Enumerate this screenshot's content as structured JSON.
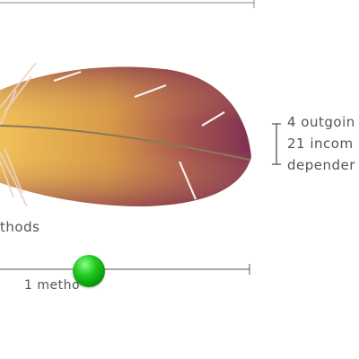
{
  "metrics": {
    "methods_label": "thods",
    "dependencies": {
      "line1": "4 outgoin",
      "line2": "21 incom",
      "line3": "depender"
    }
  },
  "slider": {
    "value_label": "1 metho",
    "thumb_color": "#22cc22"
  },
  "feather": {
    "base_color": "#e8b043",
    "tip_color": "#8a3a55"
  }
}
